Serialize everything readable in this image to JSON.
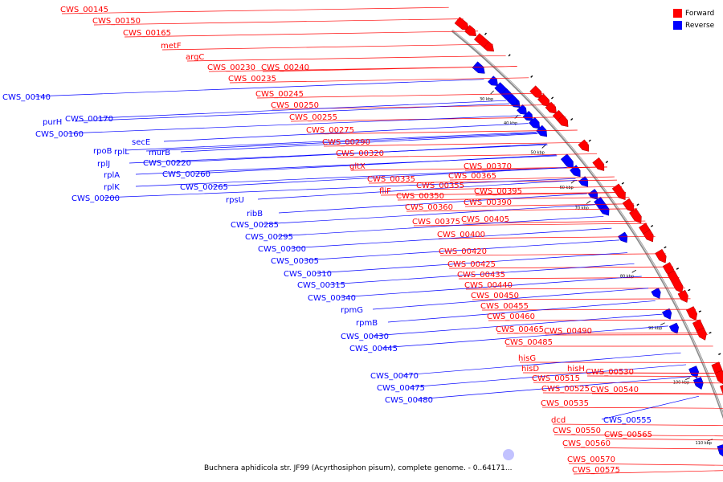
{
  "legend": {
    "forward_label": "Forward",
    "reverse_label": "Reverse",
    "forward_color": "#ff0000",
    "reverse_color": "#0000ff"
  },
  "caption": "Buchnera aphidicola str. JF99 (Acyrthosiphon pisum), complete genome. - 0..64171...",
  "ticks": [
    "30 kbp",
    "40 kbp",
    "50 kbp",
    "60 kbp",
    "70 kbp",
    "80 kbp",
    "90 kbp",
    "100 kbp",
    "110 kbp"
  ],
  "forward_genes": [
    "CWS_00145",
    "CWS_00150",
    "CWS_00165",
    "metF",
    "argC",
    "CWS_00230",
    "CWS_00240",
    "CWS_00235",
    "CWS_00245",
    "CWS_00250",
    "CWS_00255",
    "CWS_00275",
    "CWS_00290",
    "CWS_00320",
    "gltX",
    "CWS_00370",
    "CWS_00365",
    "CWS_00335",
    "CWS_00355",
    "fliF",
    "CWS_00350",
    "CWS_00395",
    "CWS_00390",
    "CWS_00360",
    "CWS_00405",
    "CWS_00375",
    "CWS_00400",
    "CWS_00420",
    "CWS_00425",
    "CWS_00435",
    "CWS_00440",
    "CWS_00450",
    "CWS_00455",
    "CWS_00460",
    "CWS_00465",
    "CWS_00490",
    "CWS_00485",
    "hisG",
    "hisD",
    "hisH",
    "CWS_00515",
    "CWS_00530",
    "CWS_00525",
    "CWS_00540",
    "CWS_00535",
    "dcd",
    "CWS_00550",
    "CWS_00565",
    "CWS_00560",
    "CWS_00570",
    "CWS_00575"
  ],
  "reverse_genes": [
    "CWS_00140",
    "purH",
    "CWS_00170",
    "CWS_00160",
    "secE",
    "rpoB",
    "rplL",
    "murB",
    "rplJ",
    "CWS_00220",
    "rplA",
    "CWS_00260",
    "rplK",
    "CWS_00265",
    "CWS_00200",
    "rpsU",
    "ribB",
    "CWS_00285",
    "CWS_00295",
    "CWS_00300",
    "CWS_00305",
    "CWS_00310",
    "CWS_00315",
    "CWS_00340",
    "rpmG",
    "rpmB",
    "CWS_00430",
    "CWS_00445",
    "CWS_00470",
    "CWS_00475",
    "CWS_00480",
    "CWS_00555"
  ]
}
